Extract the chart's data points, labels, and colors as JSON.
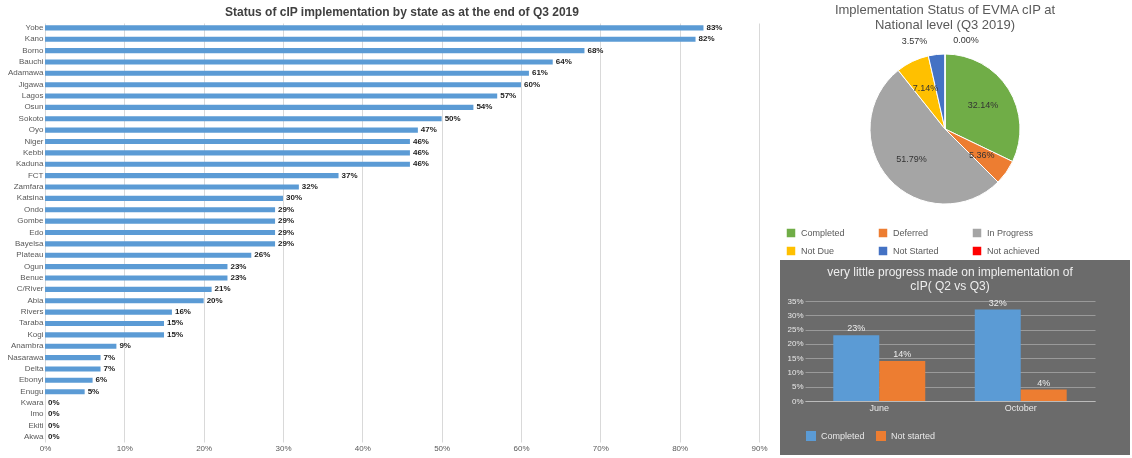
{
  "chart_data": [
    {
      "type": "bar",
      "orientation": "horizontal",
      "title": "Status of cIP implementation by state as at  the end of Q3 2019",
      "categories": [
        "Yobe",
        "Kano",
        "Borno",
        "Bauchi",
        "Adamawa",
        "Jigawa",
        "Lagos",
        "Osun",
        "Sokoto",
        "Oyo",
        "Niger",
        "Kebbi",
        "Kaduna",
        "FCT",
        "Zamfara",
        "Katsina",
        "Ondo",
        "Gombe",
        "Edo",
        "Bayelsa",
        "Plateau",
        "Ogun",
        "Benue",
        "C/River",
        "Abia",
        "Rivers",
        "Taraba",
        "Kogi",
        "Anambra",
        "Nasarawa",
        "Delta",
        "Ebonyi",
        "Enugu",
        "Kwara",
        "Imo",
        "Ekiti",
        "Akwa"
      ],
      "values": [
        83,
        82,
        68,
        64,
        61,
        60,
        57,
        54,
        50,
        47,
        46,
        46,
        46,
        37,
        32,
        30,
        29,
        29,
        29,
        29,
        26,
        23,
        23,
        21,
        20,
        16,
        15,
        15,
        9,
        7,
        7,
        6,
        5,
        0,
        0,
        0,
        0
      ],
      "value_labels": [
        "83%",
        "82%",
        "68%",
        "64%",
        "61%",
        "60%",
        "57%",
        "54%",
        "50%",
        "47%",
        "46%",
        "46%",
        "46%",
        "37%",
        "32%",
        "30%",
        "29%",
        "29%",
        "29%",
        "29%",
        "26%",
        "23%",
        "23%",
        "21%",
        "20%",
        "16%",
        "15%",
        "15%",
        "9%",
        "7%",
        "7%",
        "6%",
        "5%",
        "0%",
        "0%",
        "0%",
        "0%"
      ],
      "color": "#5b9bd5",
      "xlim": [
        0,
        90
      ],
      "xticks": [
        {
          "value": 0,
          "label": "0%"
        },
        {
          "value": 10,
          "label": "10%"
        },
        {
          "value": 20,
          "label": "20%"
        },
        {
          "value": 30,
          "label": "30%"
        },
        {
          "value": 40,
          "label": "40%"
        },
        {
          "value": 50,
          "label": "50%"
        },
        {
          "value": 60,
          "label": "60%"
        },
        {
          "value": 70,
          "label": "70%"
        },
        {
          "value": 80,
          "label": "80%"
        },
        {
          "value": 90,
          "label": "90%"
        }
      ],
      "grid": "x"
    },
    {
      "type": "pie",
      "title": "Implementation Status of EVMA cIP at National level (Q3 2019)",
      "categories": [
        "Completed",
        "Deferred",
        "In Progress",
        "Not Due",
        "Not Started",
        "Not achieved"
      ],
      "values": [
        32.14,
        5.36,
        51.79,
        7.14,
        3.57,
        0.0
      ],
      "value_labels": [
        "32.14%",
        "5.36%",
        "51.79%",
        "7.14%",
        "3.57%",
        "0.00%"
      ],
      "colors": [
        "#70ad47",
        "#ed7d31",
        "#a5a5a5",
        "#ffc000",
        "#4472c4",
        "#ff0000"
      ],
      "legend": "bottom"
    },
    {
      "type": "bar",
      "title": "very little progress made on implementation of cIP( Q2 vs Q3)",
      "categories": [
        "June",
        "October"
      ],
      "series": [
        {
          "name": "Completed",
          "color": "#5b9bd5",
          "values": [
            23,
            32
          ],
          "value_labels": [
            "23%",
            "32%"
          ]
        },
        {
          "name": "Not started",
          "color": "#ed7d31",
          "values": [
            14,
            4
          ],
          "value_labels": [
            "14%",
            "4%"
          ]
        }
      ],
      "ylim": [
        0,
        35
      ],
      "yticks": [
        {
          "value": 0,
          "label": "0%"
        },
        {
          "value": 5,
          "label": "5%"
        },
        {
          "value": 10,
          "label": "10%"
        },
        {
          "value": 15,
          "label": "15%"
        },
        {
          "value": 20,
          "label": "20%"
        },
        {
          "value": 25,
          "label": "25%"
        },
        {
          "value": 30,
          "label": "30%"
        },
        {
          "value": 35,
          "label": "35%"
        }
      ],
      "grid": "y",
      "legend": "bottom"
    }
  ]
}
